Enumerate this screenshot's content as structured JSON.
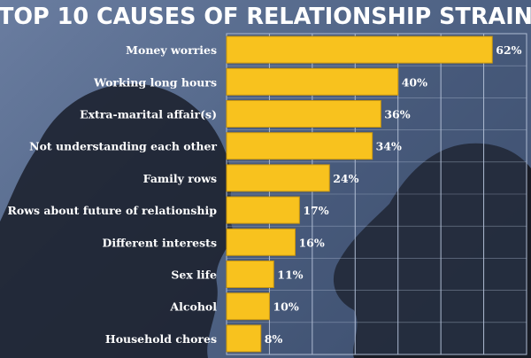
{
  "chart_data": {
    "type": "bar",
    "orientation": "horizontal",
    "title": "TOP 10 CAUSES OF RELATIONSHIP STRAIN",
    "categories": [
      "Money worries",
      "Working long hours",
      "Extra-marital affair(s)",
      "Not understanding each other",
      "Family rows",
      "Rows about future of relationship",
      "Different interests",
      "Sex life",
      "Alcohol",
      "Household chores"
    ],
    "values": [
      62,
      40,
      36,
      34,
      24,
      17,
      16,
      11,
      10,
      8
    ],
    "value_labels": [
      "62%",
      "40%",
      "36%",
      "34%",
      "24%",
      "17%",
      "16%",
      "11%",
      "10%",
      "8%"
    ],
    "xlim": [
      0,
      70
    ],
    "grid": true,
    "legend": "none",
    "colors": {
      "bar": "#f8c21e",
      "bar_edge": "#c9960f",
      "text": "#ffffff",
      "grid": "#aebbd2",
      "background": "#4f6285"
    }
  }
}
